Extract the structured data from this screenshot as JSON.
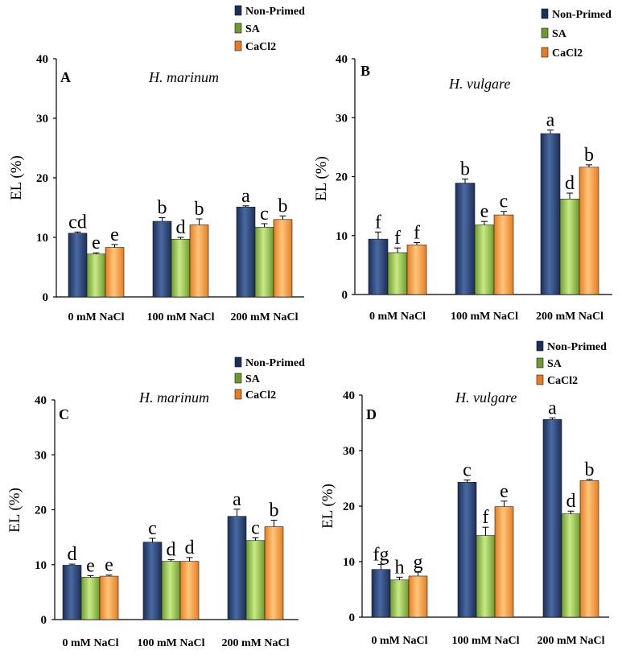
{
  "colors": {
    "nonprimed_a": "#1c2f58",
    "nonprimed_b": "#4a6aa2",
    "sa_a": "#6f9a2e",
    "sa_b": "#c8ea86",
    "cacl2_a": "#e57d24",
    "cacl2_b": "#ffc67a"
  },
  "chart_data": [
    {
      "type": "bar",
      "panel_label": "A",
      "title": "H. marinum",
      "ylabel": "EL (%)",
      "ylim": [
        0,
        40
      ],
      "yticks": [
        "0",
        "10",
        "20",
        "30",
        "40"
      ],
      "categories": [
        "0 mM NaCl",
        "100 mM NaCl",
        "200 mM NaCl"
      ],
      "series": [
        {
          "name": "Non-Primed",
          "values": [
            10.7,
            12.7,
            15.1
          ],
          "errors": [
            0.2,
            0.6,
            0.2
          ],
          "letters": [
            "cd",
            "b",
            "a"
          ]
        },
        {
          "name": "SA",
          "values": [
            7.2,
            9.7,
            11.7
          ],
          "errors": [
            0.2,
            0.3,
            0.6
          ],
          "letters": [
            "e",
            "d",
            "c"
          ]
        },
        {
          "name": "CaCl2",
          "values": [
            8.3,
            12.1,
            13.0
          ],
          "errors": [
            0.5,
            1.0,
            0.6
          ],
          "letters": [
            "e",
            "b",
            "b"
          ]
        }
      ]
    },
    {
      "type": "bar",
      "panel_label": "B",
      "title": "H. vulgare",
      "ylabel": "EL (%)",
      "ylim": [
        0,
        40
      ],
      "yticks": [
        "0",
        "10",
        "20",
        "30",
        "40"
      ],
      "categories": [
        "0 mM NaCl",
        "100 mM NaCl",
        "200 mM NaCl"
      ],
      "series": [
        {
          "name": "Non-Primed",
          "values": [
            9.4,
            18.9,
            27.3
          ],
          "errors": [
            1.2,
            0.7,
            0.6
          ],
          "letters": [
            "f",
            "b",
            "a"
          ]
        },
        {
          "name": "SA",
          "values": [
            7.1,
            11.8,
            16.2
          ],
          "errors": [
            0.8,
            0.6,
            1.0
          ],
          "letters": [
            "f",
            "e",
            "d"
          ]
        },
        {
          "name": "CaCl2",
          "values": [
            8.4,
            13.5,
            21.6
          ],
          "errors": [
            0.4,
            0.6,
            0.4
          ],
          "letters": [
            "f",
            "c",
            "b"
          ]
        }
      ]
    },
    {
      "type": "bar",
      "panel_label": "C",
      "title": "H. marinum",
      "ylabel": "EL (%)",
      "ylim": [
        0,
        40
      ],
      "yticks": [
        "0",
        "10",
        "20",
        "30",
        "40"
      ],
      "categories": [
        "0 mM NaCl",
        "100 mM NaCl",
        "200 mM NaCl"
      ],
      "series": [
        {
          "name": "Non-Primed",
          "values": [
            9.9,
            14.1,
            18.8
          ],
          "errors": [
            0.2,
            0.7,
            1.3
          ],
          "letters": [
            "d",
            "c",
            "a"
          ]
        },
        {
          "name": "SA",
          "values": [
            7.7,
            10.6,
            14.4
          ],
          "errors": [
            0.3,
            0.3,
            0.5
          ],
          "letters": [
            "e",
            "d",
            "c"
          ]
        },
        {
          "name": "CaCl2",
          "values": [
            7.9,
            10.6,
            16.9
          ],
          "errors": [
            0.2,
            0.7,
            1.2
          ],
          "letters": [
            "e",
            "d",
            "b"
          ]
        }
      ]
    },
    {
      "type": "bar",
      "panel_label": "D",
      "title": "H. vulgare",
      "ylabel": "EL (%)",
      "ylim": [
        0,
        40
      ],
      "yticks": [
        "0",
        "10",
        "20",
        "30",
        "40"
      ],
      "categories": [
        "0 mM NaCl",
        "100 mM NaCl",
        "200 mM NaCl"
      ],
      "series": [
        {
          "name": "Non-Primed",
          "values": [
            8.6,
            24.3,
            35.6
          ],
          "errors": [
            0.9,
            0.4,
            0.3
          ],
          "letters": [
            "fg",
            "c",
            "a"
          ]
        },
        {
          "name": "SA",
          "values": [
            6.7,
            14.7,
            18.6
          ],
          "errors": [
            0.5,
            1.5,
            0.5
          ],
          "letters": [
            "h",
            "f",
            "d"
          ]
        },
        {
          "name": "CaCl2",
          "values": [
            7.4,
            19.9,
            24.6
          ],
          "errors": [
            0.7,
            1.0,
            0.2
          ],
          "letters": [
            "g",
            "e",
            "b"
          ]
        }
      ]
    }
  ],
  "legends": [
    {
      "items": [
        "Non-Primed",
        "SA",
        "CaCl2"
      ]
    },
    {
      "items": [
        "Non-Primed",
        "SA",
        "CaCl2"
      ]
    },
    {
      "items": [
        "Non-Primed",
        "SA",
        "CaCl2"
      ]
    },
    {
      "items": [
        "Non-Primed",
        "SA",
        "CaCl2"
      ]
    }
  ]
}
